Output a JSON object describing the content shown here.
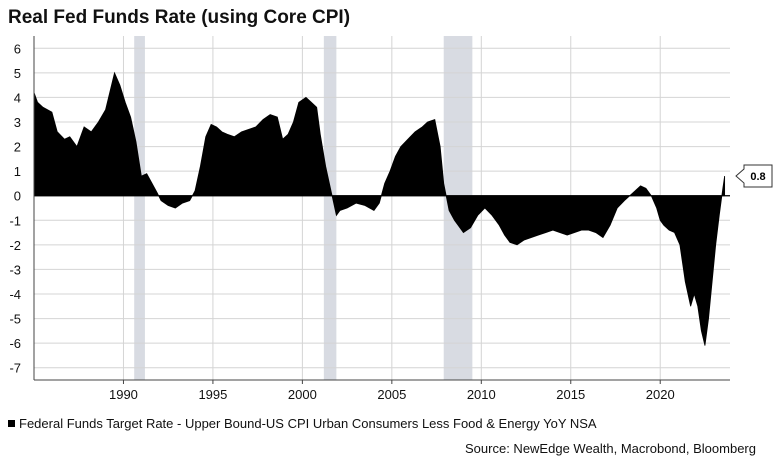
{
  "chart_data": {
    "type": "area",
    "title": "Real Fed Funds Rate (using Core CPI)",
    "legend": "Federal Funds Target Rate - Upper Bound-US CPI Urban Consumers Less Food & Energy YoY NSA",
    "source": "Source: NewEdge Wealth, Macrobond, Bloomberg",
    "xlim": [
      1985.0,
      2023.9
    ],
    "ylim": [
      -7.5,
      6.5
    ],
    "x_ticks": [
      1990,
      1995,
      2000,
      2005,
      2010,
      2015,
      2020
    ],
    "x_tick_labels": [
      "1990",
      "1995",
      "2000",
      "2005",
      "2010",
      "2015",
      "2020"
    ],
    "y_ticks": [
      6,
      5,
      4,
      3,
      2,
      1,
      0,
      -1,
      -2,
      -3,
      -4,
      -5,
      -6,
      -7
    ],
    "y_tick_labels": [
      "6",
      "5",
      "4",
      "3",
      "2",
      "1",
      "0",
      "-1",
      "-2",
      "-3",
      "-4",
      "-5",
      "-6",
      "-7"
    ],
    "recessions": [
      [
        1990.6,
        1991.2
      ],
      [
        2001.2,
        2001.9
      ],
      [
        2007.9,
        2009.5
      ]
    ],
    "last_value_label": "0.8",
    "last_value": 0.8,
    "series": [
      {
        "values_x": [
          1985.0,
          1985.2,
          1985.5,
          1986.0,
          1986.3,
          1986.7,
          1987.0,
          1987.4,
          1987.8,
          1988.2,
          1988.6,
          1989.0,
          1989.3,
          1989.5,
          1989.8,
          1990.1,
          1990.4,
          1990.7,
          1991.0,
          1991.3,
          1991.6,
          1991.9,
          1992.1,
          1992.5,
          1992.9,
          1993.3,
          1993.7,
          1994.0,
          1994.3,
          1994.6,
          1994.9,
          1995.2,
          1995.5,
          1995.8,
          1996.2,
          1996.6,
          1997.0,
          1997.4,
          1997.8,
          1998.2,
          1998.6,
          1998.9,
          1999.2,
          1999.5,
          1999.8,
          2000.2,
          2000.5,
          2000.8,
          2001.0,
          2001.3,
          2001.6,
          2001.9,
          2002.1,
          2002.5,
          2003.0,
          2003.5,
          2004.0,
          2004.3,
          2004.6,
          2004.9,
          2005.2,
          2005.5,
          2005.9,
          2006.3,
          2006.7,
          2007.0,
          2007.4,
          2007.7,
          2007.9,
          2008.2,
          2008.5,
          2008.8,
          2009.0,
          2009.4,
          2009.8,
          2010.2,
          2010.6,
          2011.0,
          2011.3,
          2011.6,
          2012.0,
          2012.4,
          2012.8,
          2013.2,
          2013.6,
          2014.0,
          2014.4,
          2014.8,
          2015.2,
          2015.6,
          2016.0,
          2016.4,
          2016.8,
          2017.2,
          2017.6,
          2018.0,
          2018.3,
          2018.6,
          2018.9,
          2019.2,
          2019.5,
          2019.8,
          2020.0,
          2020.2,
          2020.5,
          2020.8,
          2021.1,
          2021.4,
          2021.7,
          2021.9,
          2022.1,
          2022.3,
          2022.5,
          2022.7,
          2022.9,
          2023.1,
          2023.3,
          2023.5,
          2023.6
        ],
        "values_y": [
          4.2,
          3.8,
          3.6,
          3.4,
          2.6,
          2.3,
          2.4,
          2.0,
          2.8,
          2.6,
          3.0,
          3.5,
          4.4,
          5.0,
          4.5,
          3.8,
          3.2,
          2.2,
          0.8,
          0.9,
          0.5,
          0.1,
          -0.2,
          -0.4,
          -0.5,
          -0.3,
          -0.2,
          0.2,
          1.2,
          2.4,
          2.9,
          2.8,
          2.6,
          2.5,
          2.4,
          2.6,
          2.7,
          2.8,
          3.1,
          3.3,
          3.2,
          2.3,
          2.5,
          3.0,
          3.8,
          4.0,
          3.8,
          3.6,
          2.5,
          1.2,
          0.2,
          -0.8,
          -0.6,
          -0.5,
          -0.3,
          -0.4,
          -0.6,
          -0.3,
          0.5,
          1.0,
          1.6,
          2.0,
          2.3,
          2.6,
          2.8,
          3.0,
          3.1,
          2.0,
          0.5,
          -0.6,
          -1.0,
          -1.3,
          -1.5,
          -1.3,
          -0.8,
          -0.5,
          -0.8,
          -1.2,
          -1.6,
          -1.9,
          -2.0,
          -1.8,
          -1.7,
          -1.6,
          -1.5,
          -1.4,
          -1.5,
          -1.6,
          -1.5,
          -1.4,
          -1.4,
          -1.5,
          -1.7,
          -1.2,
          -0.5,
          -0.2,
          0.0,
          0.2,
          0.4,
          0.3,
          0.0,
          -0.5,
          -1.0,
          -1.2,
          -1.4,
          -1.5,
          -2.0,
          -3.5,
          -4.5,
          -4.0,
          -4.5,
          -5.5,
          -6.1,
          -5.0,
          -3.5,
          -2.0,
          -0.8,
          0.3,
          0.8
        ]
      }
    ]
  }
}
